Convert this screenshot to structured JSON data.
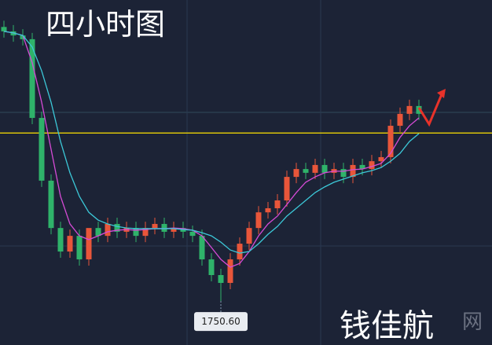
{
  "chart_data": {
    "type": "candlestick",
    "title": "四小时图",
    "watermark": "钱佳航",
    "watermark_faint": "网",
    "ylim": [
      1736.6,
      1846.6
    ],
    "open": [
      1838.0,
      1836.6,
      1835.3,
      1834.1,
      1809.0,
      1789.0,
      1773.9,
      1766.4,
      1771.4,
      1763.9,
      1773.9,
      1771.4,
      1775.2,
      1772.7,
      1773.9,
      1771.4,
      1773.9,
      1775.2,
      1772.7,
      1773.9,
      1772.7,
      1771.4,
      1763.9,
      1758.9,
      1756.4,
      1763.9,
      1768.9,
      1773.9,
      1778.9,
      1780.2,
      1782.7,
      1790.2,
      1792.7,
      1791.5,
      1794.0,
      1791.5,
      1792.7,
      1790.2,
      1794.0,
      1792.7,
      1795.2,
      1796.5,
      1806.5,
      1810.3,
      1812.8
    ],
    "high": [
      1840.0,
      1838.6,
      1837.3,
      1836.1,
      1811.0,
      1791.0,
      1775.9,
      1773.4,
      1773.4,
      1773.4,
      1775.9,
      1777.2,
      1777.2,
      1775.9,
      1775.9,
      1775.9,
      1777.2,
      1777.2,
      1775.9,
      1775.9,
      1774.7,
      1773.4,
      1765.9,
      1760.9,
      1765.9,
      1770.9,
      1775.9,
      1780.9,
      1782.2,
      1784.7,
      1792.2,
      1794.7,
      1794.7,
      1796.0,
      1796.0,
      1794.7,
      1794.7,
      1796.0,
      1796.0,
      1797.2,
      1798.5,
      1808.5,
      1812.3,
      1814.8,
      1814.8
    ],
    "low": [
      1834.6,
      1833.3,
      1832.1,
      1807.0,
      1787.0,
      1771.9,
      1764.4,
      1764.4,
      1761.9,
      1761.9,
      1769.4,
      1769.4,
      1770.7,
      1770.7,
      1769.4,
      1769.4,
      1771.9,
      1770.7,
      1770.7,
      1770.7,
      1769.4,
      1761.9,
      1756.9,
      1750.6,
      1754.4,
      1761.9,
      1766.9,
      1771.9,
      1776.9,
      1778.2,
      1780.7,
      1788.2,
      1789.5,
      1789.5,
      1789.5,
      1789.5,
      1788.2,
      1788.2,
      1790.7,
      1790.7,
      1793.2,
      1794.5,
      1804.5,
      1808.3,
      1808.3
    ],
    "close": [
      1836.6,
      1835.3,
      1834.1,
      1809.0,
      1789.0,
      1773.9,
      1766.4,
      1771.4,
      1763.9,
      1773.9,
      1771.4,
      1775.2,
      1772.7,
      1773.9,
      1771.4,
      1773.9,
      1775.2,
      1772.7,
      1773.9,
      1772.7,
      1771.4,
      1763.9,
      1758.9,
      1756.4,
      1763.9,
      1768.9,
      1773.9,
      1778.9,
      1780.2,
      1782.7,
      1790.2,
      1792.7,
      1791.5,
      1794.0,
      1791.5,
      1792.7,
      1790.2,
      1794.0,
      1792.7,
      1795.2,
      1796.5,
      1806.5,
      1810.3,
      1812.8,
      1810.3
    ],
    "up_color": "#e8563a",
    "down_color": "#2fb36a",
    "lines": [
      {
        "color": "#d64bd6",
        "values": [
          1836.6,
          1836.1,
          1835.3,
          1826.6,
          1814.0,
          1799.0,
          1784.0,
          1775.2,
          1771.4,
          1770.2,
          1771.4,
          1772.7,
          1773.2,
          1773.4,
          1773.2,
          1773.4,
          1773.7,
          1773.7,
          1773.9,
          1773.7,
          1773.2,
          1771.4,
          1767.7,
          1763.9,
          1761.4,
          1762.6,
          1766.4,
          1771.4,
          1775.2,
          1777.7,
          1781.4,
          1785.2,
          1788.5,
          1790.2,
          1791.5,
          1792.0,
          1792.0,
          1792.5,
          1792.7,
          1793.5,
          1794.5,
          1797.7,
          1802.8,
          1806.5,
          1809.0
        ]
      },
      {
        "color": "#3cc8d8",
        "values": [
          1836.6,
          1836.1,
          1835.3,
          1831.6,
          1824.0,
          1814.0,
          1801.5,
          1791.5,
          1784.0,
          1778.9,
          1776.4,
          1775.2,
          1774.4,
          1773.9,
          1773.7,
          1773.7,
          1773.7,
          1773.7,
          1773.7,
          1773.4,
          1773.2,
          1772.4,
          1771.4,
          1769.4,
          1766.9,
          1765.9,
          1766.4,
          1768.9,
          1771.9,
          1774.4,
          1777.7,
          1780.2,
          1782.7,
          1785.2,
          1787.0,
          1788.5,
          1789.5,
          1790.5,
          1791.5,
          1792.2,
          1793.2,
          1795.2,
          1797.7,
          1801.5,
          1804.0
        ]
      }
    ],
    "level": {
      "value": 1804.2,
      "color": "#ffe200"
    },
    "low_annotation": {
      "index": 23,
      "value": 1750.6,
      "label": "1750.60"
    }
  }
}
